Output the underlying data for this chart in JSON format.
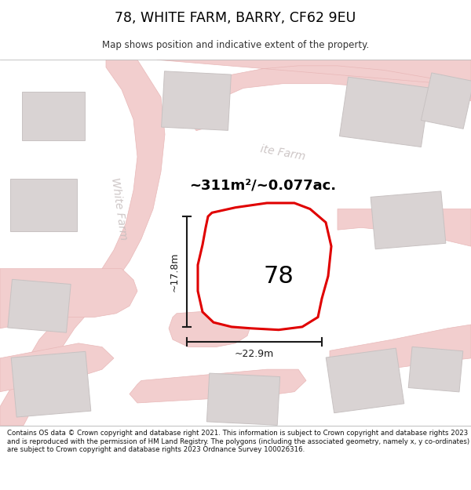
{
  "title": "78, WHITE FARM, BARRY, CF62 9EU",
  "subtitle": "Map shows position and indicative extent of the property.",
  "footer": "Contains OS data © Crown copyright and database right 2021. This information is subject to Crown copyright and database rights 2023 and is reproduced with the permission of HM Land Registry. The polygons (including the associated geometry, namely x, y co-ordinates) are subject to Crown copyright and database rights 2023 Ordnance Survey 100026316.",
  "area_label": "~311m²/~0.077ac.",
  "width_label": "~22.9m",
  "height_label": "~17.8m",
  "property_number": "78",
  "map_bg": "#f7f2f2",
  "road_color": "#f2cece",
  "road_stroke": "#e8b8b8",
  "building_fill": "#d9d3d3",
  "building_stroke": "#c8c2c2",
  "plot_fill": "#ffffff",
  "plot_stroke": "#e00000",
  "dimension_color": "#1a1a1a",
  "road_label_color": "#c8c0c0",
  "street_name_v": "White Farm",
  "street_name_h": "ite Farm"
}
